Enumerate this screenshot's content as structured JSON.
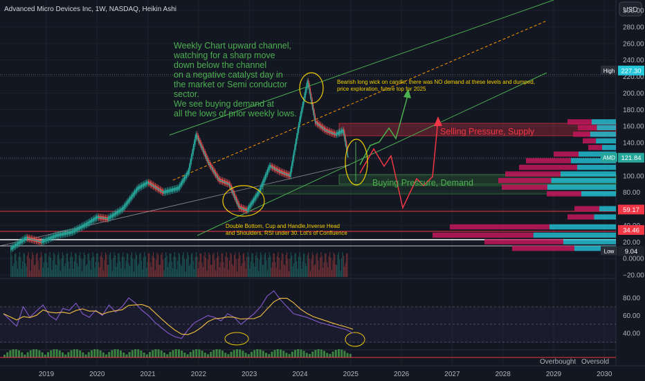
{
  "header": {
    "title": "Advanced Micro Devices Inc, 1W, NASDAQ, Heikin Ashi",
    "currency": "USD"
  },
  "chart_data": {
    "type": "line",
    "title": "Advanced Micro Devices Inc, 1W, NASDAQ, Heikin Ashi",
    "price_axis": {
      "ticks": [
        "300.00",
        "280.00",
        "260.00",
        "240.00",
        "220.00",
        "200.00",
        "180.00",
        "160.00",
        "140.00",
        "120.00",
        "100.00",
        "80.00",
        "60.00",
        "40.00",
        "20.00",
        "0.0000",
        "−20.00"
      ],
      "ylim": [
        -20,
        300
      ]
    },
    "time_axis": {
      "ticks": [
        "2019",
        "2020",
        "2021",
        "2022",
        "2023",
        "2024",
        "2025",
        "2026",
        "2027",
        "2028",
        "2029",
        "2030"
      ]
    },
    "price_labels": [
      {
        "name": "High",
        "value": "227.30"
      },
      {
        "name": "AMD",
        "value": "121.84"
      },
      {
        "name": "",
        "value": "59.17"
      },
      {
        "name": "",
        "value": "34.46"
      },
      {
        "name": "Low",
        "value": "9.04"
      }
    ],
    "series": [
      {
        "name": "",
        "x": [
          2018.3,
          2018.6,
          2018.9,
          2019.2,
          2019.5,
          2019.8,
          2020.0,
          2020.2,
          2020.5,
          2020.8,
          2021.0,
          2021.3,
          2021.6,
          2021.8,
          2021.95,
          2022.2,
          2022.4,
          2022.6,
          2022.8,
          2022.95,
          2023.2,
          2023.4,
          2023.6,
          2023.8,
          2024.0,
          2024.15,
          2024.3,
          2024.5,
          2024.7,
          2024.85,
          2024.95
        ],
        "values": [
          12,
          25,
          20,
          28,
          32,
          42,
          50,
          48,
          60,
          85,
          92,
          80,
          85,
          105,
          150,
          115,
          95,
          90,
          62,
          58,
          82,
          112,
          105,
          100,
          170,
          215,
          165,
          155,
          150,
          155,
          122
        ]
      }
    ],
    "rsi_axis": {
      "ticks": [
        "80.00",
        "60.00",
        "40.00"
      ],
      "ylim": [
        20,
        100
      ]
    },
    "annotations": [
      "Weekly Chart upward channel, watching for a sharp move down below the channel on a negative catalyst day in the market or Semi conductor sector.",
      "We see buying demand at all the lows of prior weekly lows.",
      "Bearish long wick on candle, there was NO demand at these levels and dumped, price exploration, future top for 2025",
      "Selling Pressure, Supply",
      "Buying Pressure, Demand",
      "Double Bottom, Cup and Handle,Inverse Head and Shoulders, RSI under 30. Lot's of Confluence"
    ],
    "legend": [
      "Overbought",
      "Oversold"
    ]
  },
  "colors": {
    "background": "#131722",
    "up": "#26a69a",
    "down": "#ef5350",
    "annotation_green": "#4caf50",
    "annotation_yellow": "#f5d000",
    "selling_label": "#f23645",
    "rsi_line": "#7e57c2",
    "rsi_ma": "#f5c242"
  }
}
